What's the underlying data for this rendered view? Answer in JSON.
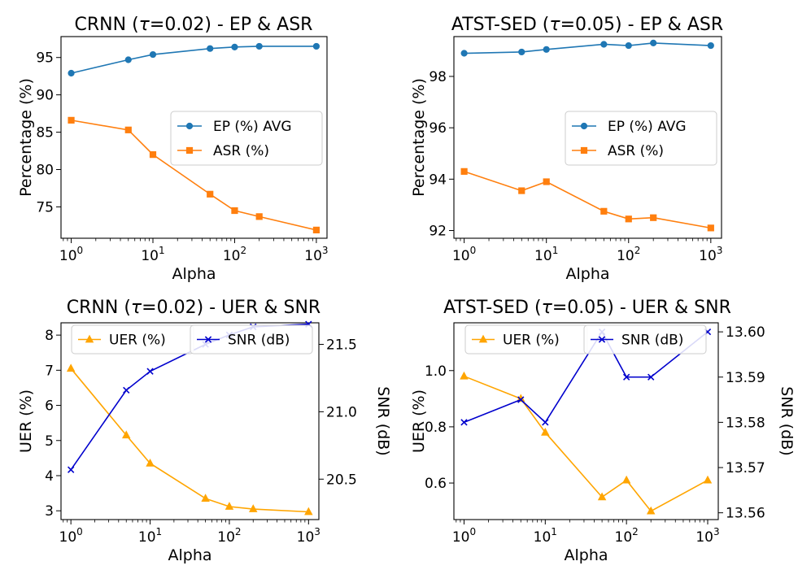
{
  "colors": {
    "ep": "#1f77b4",
    "asr": "#ff7f0e",
    "uer": "#ffa500",
    "snr": "#0000cd"
  },
  "chart_data": [
    {
      "type": "line",
      "title": "CRNN (τ=0.02) - EP & ASR",
      "xlabel": "Alpha",
      "ylabel": "Percentage (%)",
      "xscale": "log",
      "xlim": [
        0.75,
        1350
      ],
      "ylim": [
        70.8,
        97.8
      ],
      "x_ticks": [
        1,
        10,
        100,
        1000
      ],
      "x_tick_labels": [
        [
          "10",
          "0"
        ],
        [
          "10",
          "1"
        ],
        [
          "10",
          "2"
        ],
        [
          "10",
          "3"
        ]
      ],
      "y_ticks": [
        75,
        80,
        85,
        90,
        95
      ],
      "y_tick_labels": [
        "75",
        "80",
        "85",
        "90",
        "95"
      ],
      "x": [
        1,
        5,
        10,
        50,
        100,
        200,
        1000
      ],
      "legend_position": "center-right",
      "series": [
        {
          "name": "EP (%) AVG",
          "values": [
            92.9,
            94.7,
            95.4,
            96.2,
            96.4,
            96.5,
            96.5
          ],
          "color": "#1f77b4",
          "marker": "circle"
        },
        {
          "name": "ASR (%)",
          "values": [
            86.6,
            85.3,
            82.0,
            76.7,
            74.5,
            73.7,
            71.9
          ],
          "color": "#ff7f0e",
          "marker": "square"
        }
      ]
    },
    {
      "type": "line",
      "title": "ATST-SED (τ=0.05) - EP & ASR",
      "xlabel": "Alpha",
      "ylabel": "Percentage (%)",
      "xscale": "log",
      "xlim": [
        0.75,
        1350
      ],
      "ylim": [
        91.7,
        99.55
      ],
      "x_ticks": [
        1,
        10,
        100,
        1000
      ],
      "x_tick_labels": [
        [
          "10",
          "0"
        ],
        [
          "10",
          "1"
        ],
        [
          "10",
          "2"
        ],
        [
          "10",
          "3"
        ]
      ],
      "y_ticks": [
        92,
        94,
        96,
        98
      ],
      "y_tick_labels": [
        "92",
        "94",
        "96",
        "98"
      ],
      "x": [
        1,
        5,
        10,
        50,
        100,
        200,
        1000
      ],
      "legend_position": "center-right",
      "series": [
        {
          "name": "EP (%) AVG",
          "values": [
            98.9,
            98.95,
            99.05,
            99.25,
            99.2,
            99.3,
            99.2
          ],
          "color": "#1f77b4",
          "marker": "circle"
        },
        {
          "name": "ASR (%)",
          "values": [
            94.3,
            93.55,
            93.9,
            92.75,
            92.45,
            92.5,
            92.1
          ],
          "color": "#ff7f0e",
          "marker": "square"
        }
      ]
    },
    {
      "type": "line",
      "title": "CRNN (τ=0.02) - UER & SNR",
      "xlabel": "Alpha",
      "ylabel": "UER (%)",
      "y2label": "SNR (dB)",
      "xscale": "log",
      "xlim": [
        0.75,
        1350
      ],
      "ylim": [
        2.75,
        8.35
      ],
      "y2lim": [
        20.2,
        21.66
      ],
      "x_ticks": [
        1,
        10,
        100,
        1000
      ],
      "x_tick_labels": [
        [
          "10",
          "0"
        ],
        [
          "10",
          "1"
        ],
        [
          "10",
          "2"
        ],
        [
          "10",
          "3"
        ]
      ],
      "y_ticks": [
        3,
        4,
        5,
        6,
        7,
        8
      ],
      "y_tick_labels": [
        "3",
        "4",
        "5",
        "6",
        "7",
        "8"
      ],
      "y2_ticks": [
        20.5,
        21.0,
        21.5
      ],
      "y2_tick_labels": [
        "20.5",
        "21.0",
        "21.5"
      ],
      "x": [
        1,
        5,
        10,
        50,
        100,
        200,
        1000
      ],
      "legend_position": "top",
      "series": [
        {
          "name": "UER (%)",
          "axis": "left",
          "values": [
            7.05,
            5.15,
            4.35,
            3.35,
            3.12,
            3.05,
            2.97
          ],
          "color": "#ffa500",
          "marker": "triangle"
        },
        {
          "name": "SNR (dB)",
          "axis": "right",
          "values": [
            20.57,
            21.16,
            21.3,
            21.5,
            21.57,
            21.63,
            21.65
          ],
          "color": "#0000cd",
          "marker": "x"
        }
      ]
    },
    {
      "type": "line",
      "title": "ATST-SED (τ=0.05) - UER & SNR",
      "xlabel": "Alpha",
      "ylabel": "UER (%)",
      "y2label": "SNR (dB)",
      "xscale": "log",
      "xlim": [
        0.75,
        1350
      ],
      "ylim": [
        0.47,
        1.17
      ],
      "y2lim": [
        13.5585,
        13.602
      ],
      "x_ticks": [
        1,
        10,
        100,
        1000
      ],
      "x_tick_labels": [
        [
          "10",
          "0"
        ],
        [
          "10",
          "1"
        ],
        [
          "10",
          "2"
        ],
        [
          "10",
          "3"
        ]
      ],
      "y_ticks": [
        0.6,
        0.8,
        1.0
      ],
      "y_tick_labels": [
        "0.6",
        "0.8",
        "1.0"
      ],
      "y2_ticks": [
        13.56,
        13.57,
        13.58,
        13.59,
        13.6
      ],
      "y2_tick_labels": [
        "13.56",
        "13.57",
        "13.58",
        "13.59",
        "13.60"
      ],
      "x": [
        1,
        5,
        10,
        50,
        100,
        200,
        1000
      ],
      "legend_position": "top",
      "series": [
        {
          "name": "UER (%)",
          "axis": "left",
          "values": [
            0.98,
            0.9,
            0.78,
            0.55,
            0.61,
            0.5,
            0.61
          ],
          "color": "#ffa500",
          "marker": "triangle"
        },
        {
          "name": "SNR (dB)",
          "axis": "right",
          "values": [
            13.58,
            13.585,
            13.58,
            13.6,
            13.59,
            13.59,
            13.6
          ],
          "color": "#0000cd",
          "marker": "x"
        }
      ]
    }
  ]
}
